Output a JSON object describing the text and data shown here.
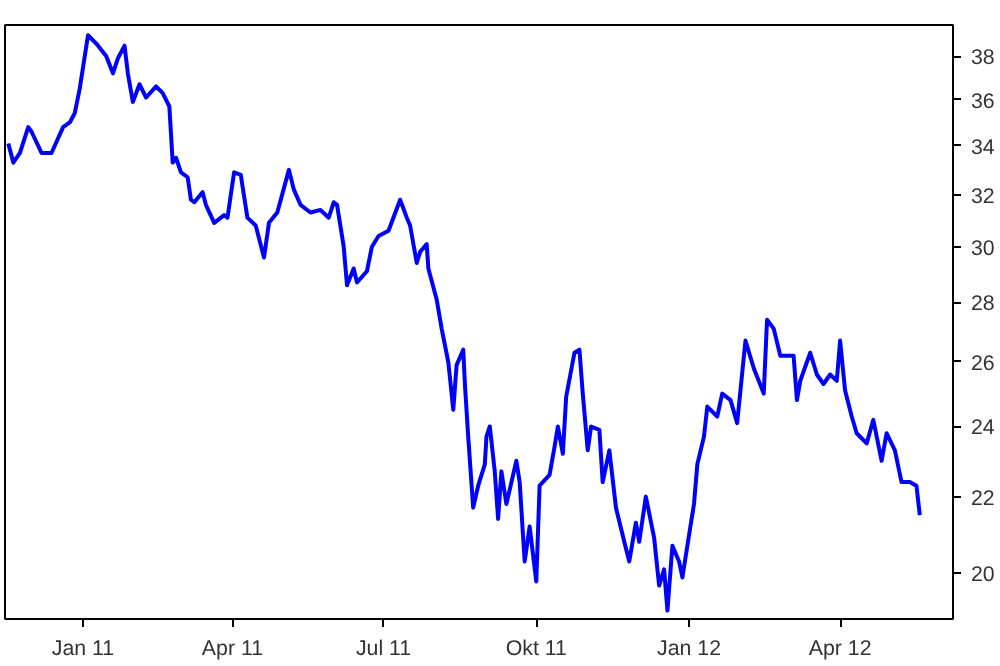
{
  "chart_data": {
    "type": "line",
    "log": "y",
    "grid": false,
    "line_style": "solid",
    "marker": "none",
    "xlim": [
      "2010-11-15",
      "2012-06-08"
    ],
    "ylim": [
      18.9,
      39.5
    ],
    "xticks": [
      {
        "value": "2011-01-01",
        "label": "Jan 11"
      },
      {
        "value": "2011-04-01",
        "label": "Apr 11"
      },
      {
        "value": "2011-07-01",
        "label": "Jul 11"
      },
      {
        "value": "2011-10-01",
        "label": "Okt 11"
      },
      {
        "value": "2012-01-01",
        "label": "Jan 12"
      },
      {
        "value": "2012-04-01",
        "label": "Apr 12"
      }
    ],
    "yticks": [
      20,
      22,
      24,
      26,
      28,
      30,
      32,
      34,
      36,
      38
    ],
    "x": [
      "2010-11-17",
      "2010-11-20",
      "2010-11-24",
      "2010-11-29",
      "2010-12-01",
      "2010-12-07",
      "2010-12-13",
      "2010-12-20",
      "2010-12-24",
      "2010-12-27",
      "2010-12-30",
      "2011-01-04",
      "2011-01-09",
      "2011-01-15",
      "2011-01-19",
      "2011-01-22",
      "2011-01-26",
      "2011-01-28",
      "2011-01-31",
      "2011-02-04",
      "2011-02-08",
      "2011-02-14",
      "2011-02-18",
      "2011-02-22",
      "2011-02-24",
      "2011-02-26",
      "2011-03-01",
      "2011-03-05",
      "2011-03-07",
      "2011-03-09",
      "2011-03-14",
      "2011-03-16",
      "2011-03-21",
      "2011-03-27",
      "2011-03-29",
      "2011-04-02",
      "2011-04-06",
      "2011-04-10",
      "2011-04-15",
      "2011-04-20",
      "2011-04-23",
      "2011-04-28",
      "2011-05-05",
      "2011-05-08",
      "2011-05-12",
      "2011-05-18",
      "2011-05-24",
      "2011-05-29",
      "2011-06-01",
      "2011-06-03",
      "2011-06-07",
      "2011-06-09",
      "2011-06-13",
      "2011-06-15",
      "2011-06-21",
      "2011-06-24",
      "2011-06-28",
      "2011-07-04",
      "2011-07-11",
      "2011-07-15",
      "2011-07-17",
      "2011-07-21",
      "2011-07-23",
      "2011-07-27",
      "2011-07-28",
      "2011-08-02",
      "2011-08-05",
      "2011-08-09",
      "2011-08-10",
      "2011-08-12",
      "2011-08-14",
      "2011-08-18",
      "2011-08-19",
      "2011-08-21",
      "2011-08-24",
      "2011-08-27",
      "2011-08-31",
      "2011-09-01",
      "2011-09-03",
      "2011-09-06",
      "2011-09-08",
      "2011-09-10",
      "2011-09-13",
      "2011-09-19",
      "2011-09-21",
      "2011-09-24",
      "2011-09-27",
      "2011-10-01",
      "2011-10-03",
      "2011-10-09",
      "2011-10-12",
      "2011-10-14",
      "2011-10-17",
      "2011-10-19",
      "2011-10-24",
      "2011-10-27",
      "2011-10-29",
      "2011-11-01",
      "2011-11-03",
      "2011-11-08",
      "2011-11-10",
      "2011-11-14",
      "2011-11-18",
      "2011-11-23",
      "2011-11-26",
      "2011-11-30",
      "2011-12-02",
      "2011-12-06",
      "2011-12-11",
      "2011-12-14",
      "2011-12-17",
      "2011-12-19",
      "2011-12-22",
      "2011-12-26",
      "2011-12-28",
      "2011-12-31",
      "2012-01-04",
      "2012-01-06",
      "2012-01-10",
      "2012-01-12",
      "2012-01-18",
      "2012-01-21",
      "2012-01-26",
      "2012-01-30",
      "2012-02-04",
      "2012-02-09",
      "2012-02-15",
      "2012-02-17",
      "2012-02-21",
      "2012-02-25",
      "2012-03-04",
      "2012-03-06",
      "2012-03-08",
      "2012-03-14",
      "2012-03-18",
      "2012-03-22",
      "2012-03-26",
      "2012-03-30",
      "2012-04-01",
      "2012-04-04",
      "2012-04-08",
      "2012-04-11",
      "2012-04-17",
      "2012-04-21",
      "2012-04-26",
      "2012-04-29",
      "2012-05-04",
      "2012-05-08",
      "2012-05-13",
      "2012-05-17",
      "2012-05-19"
    ],
    "series": [
      {
        "color": "#0000ff",
        "values": [
          34.1,
          33.3,
          33.7,
          34.8,
          34.6,
          33.7,
          33.7,
          34.8,
          35.0,
          35.4,
          36.5,
          39.0,
          38.6,
          38.0,
          37.2,
          37.9,
          38.5,
          37.2,
          35.9,
          36.7,
          36.1,
          36.6,
          36.3,
          35.7,
          33.3,
          33.5,
          32.9,
          32.7,
          31.8,
          31.7,
          32.1,
          31.6,
          30.9,
          31.2,
          31.1,
          32.9,
          32.8,
          31.1,
          30.8,
          29.6,
          30.9,
          31.3,
          33.0,
          32.2,
          31.6,
          31.3,
          31.4,
          31.1,
          31.7,
          31.6,
          30.0,
          28.6,
          29.2,
          28.7,
          29.1,
          30.0,
          30.4,
          30.6,
          31.8,
          31.1,
          30.8,
          29.4,
          29.8,
          30.1,
          29.2,
          28.1,
          27.1,
          26.0,
          25.5,
          24.5,
          25.9,
          26.4,
          25.3,
          23.7,
          21.7,
          22.3,
          22.9,
          23.7,
          24.0,
          22.7,
          21.4,
          22.7,
          21.8,
          23.0,
          22.4,
          20.3,
          21.2,
          19.8,
          22.3,
          22.6,
          23.4,
          24.0,
          23.2,
          24.9,
          26.3,
          26.4,
          25.0,
          23.3,
          24.0,
          23.9,
          22.4,
          23.3,
          21.7,
          20.8,
          20.3,
          21.3,
          20.8,
          22.0,
          20.9,
          19.7,
          20.1,
          19.1,
          20.7,
          20.3,
          19.9,
          20.7,
          21.8,
          22.9,
          23.7,
          24.6,
          24.3,
          25.0,
          24.8,
          24.1,
          26.7,
          25.8,
          25.0,
          27.4,
          27.1,
          26.2,
          26.2,
          24.8,
          25.4,
          26.3,
          25.6,
          25.3,
          25.6,
          25.4,
          26.7,
          25.1,
          24.3,
          23.8,
          23.5,
          24.2,
          23.0,
          23.8,
          23.3,
          22.4,
          22.4,
          22.3,
          21.5
        ]
      }
    ]
  }
}
